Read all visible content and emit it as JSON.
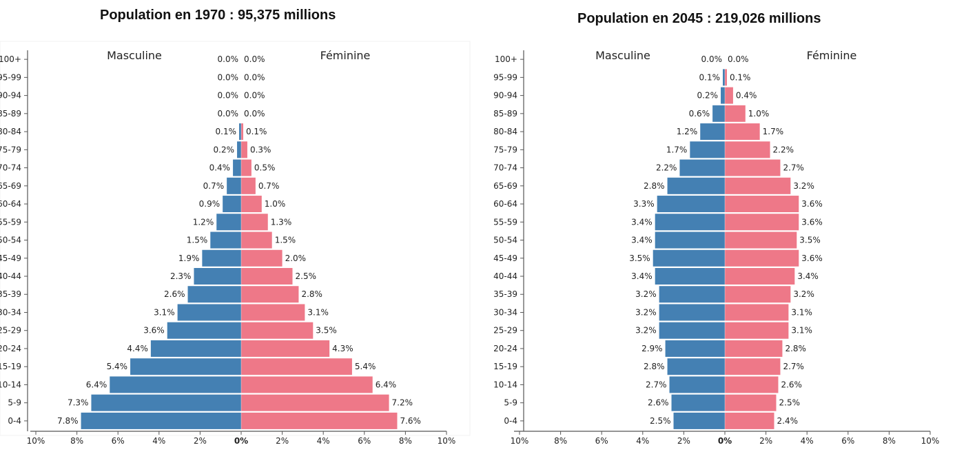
{
  "colors": {
    "male": "#4480b3",
    "female": "#ee7888",
    "axis": "#555555",
    "text": "#222222"
  },
  "chart_data": [
    {
      "type": "bar",
      "subtype": "population-pyramid",
      "title": "Population en 1970 : 95,375 millions",
      "categories": [
        "100+",
        "95-99",
        "90-94",
        "85-89",
        "80-84",
        "75-79",
        "70-74",
        "65-69",
        "60-64",
        "55-59",
        "50-54",
        "45-49",
        "40-44",
        "35-39",
        "30-34",
        "25-29",
        "20-24",
        "15-19",
        "10-14",
        "5-9",
        "0-4"
      ],
      "series": [
        {
          "name": "Masculine",
          "side": "left",
          "values": [
            0.0,
            0.0,
            0.0,
            0.0,
            0.1,
            0.2,
            0.4,
            0.7,
            0.9,
            1.2,
            1.5,
            1.9,
            2.3,
            2.6,
            3.1,
            3.6,
            4.4,
            5.4,
            6.4,
            7.3,
            7.8
          ],
          "labels": [
            "0.0%",
            "0.0%",
            "0.0%",
            "0.0%",
            "0.1%",
            "0.2%",
            "0.4%",
            "0.7%",
            "0.9%",
            "1.2%",
            "1.5%",
            "1.9%",
            "2.3%",
            "2.6%",
            "3.1%",
            "3.6%",
            "4.4%",
            "5.4%",
            "6.4%",
            "7.3%",
            "7.8%"
          ]
        },
        {
          "name": "Féminine",
          "side": "right",
          "values": [
            0.0,
            0.0,
            0.0,
            0.0,
            0.1,
            0.3,
            0.5,
            0.7,
            1.0,
            1.3,
            1.5,
            2.0,
            2.5,
            2.8,
            3.1,
            3.5,
            4.3,
            5.4,
            6.4,
            7.2,
            7.6
          ],
          "labels": [
            "0.0%",
            "0.0%",
            "0.0%",
            "0.0%",
            "0.1%",
            "0.3%",
            "0.5%",
            "0.7%",
            "1.0%",
            "1.3%",
            "1.5%",
            "2.0%",
            "2.5%",
            "2.8%",
            "3.1%",
            "3.5%",
            "4.3%",
            "5.4%",
            "6.4%",
            "7.2%",
            "7.6%"
          ]
        }
      ],
      "xlim": [
        -10,
        10
      ],
      "xticks": [
        "10%",
        "8%",
        "6%",
        "4%",
        "2%",
        "0%",
        "2%",
        "4%",
        "6%",
        "8%",
        "10%"
      ],
      "grid": false
    },
    {
      "type": "bar",
      "subtype": "population-pyramid",
      "title": "Population en 2045 : 219,026 millions",
      "categories": [
        "100+",
        "95-99",
        "90-94",
        "85-89",
        "80-84",
        "75-79",
        "70-74",
        "65-69",
        "60-64",
        "55-59",
        "50-54",
        "45-49",
        "40-44",
        "35-39",
        "30-34",
        "25-29",
        "20-24",
        "15-19",
        "10-14",
        "5-9",
        "0-4"
      ],
      "series": [
        {
          "name": "Masculine",
          "side": "left",
          "values": [
            0.0,
            0.1,
            0.2,
            0.6,
            1.2,
            1.7,
            2.2,
            2.8,
            3.3,
            3.4,
            3.4,
            3.5,
            3.4,
            3.2,
            3.2,
            3.2,
            2.9,
            2.8,
            2.7,
            2.6,
            2.5
          ],
          "labels": [
            "0.0%",
            "0.1%",
            "0.2%",
            "0.6%",
            "1.2%",
            "1.7%",
            "2.2%",
            "2.8%",
            "3.3%",
            "3.4%",
            "3.4%",
            "3.5%",
            "3.4%",
            "3.2%",
            "3.2%",
            "3.2%",
            "2.9%",
            "2.8%",
            "2.7%",
            "2.6%",
            "2.5%"
          ]
        },
        {
          "name": "Féminine",
          "side": "right",
          "values": [
            0.0,
            0.1,
            0.4,
            1.0,
            1.7,
            2.2,
            2.7,
            3.2,
            3.6,
            3.6,
            3.5,
            3.6,
            3.4,
            3.2,
            3.1,
            3.1,
            2.8,
            2.7,
            2.6,
            2.5,
            2.4
          ],
          "labels": [
            "0.0%",
            "0.1%",
            "0.4%",
            "1.0%",
            "1.7%",
            "2.2%",
            "2.7%",
            "3.2%",
            "3.6%",
            "3.6%",
            "3.5%",
            "3.6%",
            "3.4%",
            "3.2%",
            "3.1%",
            "3.1%",
            "2.8%",
            "2.7%",
            "2.6%",
            "2.5%",
            "2.4%"
          ]
        }
      ],
      "xlim": [
        -10,
        10
      ],
      "xticks": [
        "10%",
        "8%",
        "6%",
        "4%",
        "2%",
        "0%",
        "2%",
        "4%",
        "6%",
        "8%",
        "10%"
      ],
      "grid": false
    }
  ]
}
